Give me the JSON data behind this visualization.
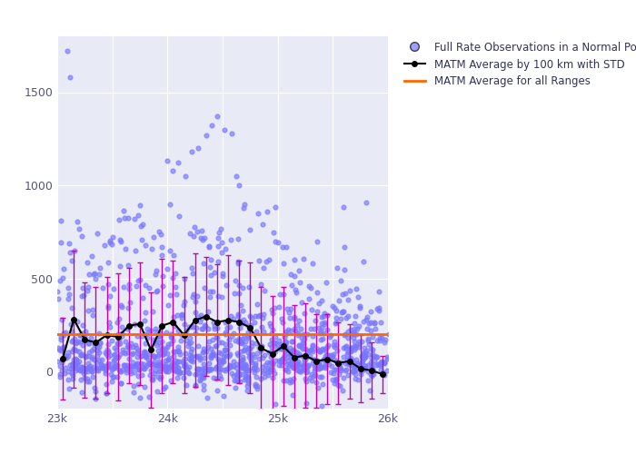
{
  "title": "",
  "x_min": 23000,
  "x_max": 26000,
  "y_min": -200,
  "y_max": 1800,
  "overall_avg": 200,
  "scatter_color": "#7777ff",
  "avg_line_color": "black",
  "overall_line_color": "#ff6600",
  "errorbar_color": "#cc00aa",
  "bg_color": "#e8eaf6",
  "avg_x": [
    23050,
    23150,
    23250,
    23350,
    23450,
    23550,
    23650,
    23750,
    23850,
    23950,
    24050,
    24150,
    24250,
    24350,
    24450,
    24550,
    24650,
    24750,
    24850,
    24950,
    25050,
    25150,
    25250,
    25350,
    25450,
    25550,
    25650,
    25750,
    25850,
    25950
  ],
  "avg_y": [
    70,
    280,
    170,
    155,
    195,
    185,
    245,
    255,
    115,
    245,
    265,
    195,
    275,
    295,
    265,
    275,
    265,
    235,
    125,
    95,
    135,
    75,
    85,
    55,
    65,
    45,
    55,
    15,
    5,
    -15
  ],
  "avg_std": [
    220,
    370,
    310,
    300,
    310,
    340,
    310,
    330,
    310,
    360,
    330,
    310,
    360,
    320,
    310,
    350,
    330,
    350,
    330,
    310,
    320,
    280,
    280,
    250,
    240,
    220,
    200,
    180,
    150,
    100
  ],
  "legend_labels": [
    "Full Rate Observations in a Normal Point",
    "MATM Average by 100 km with STD",
    "MATM Average for all Ranges"
  ]
}
